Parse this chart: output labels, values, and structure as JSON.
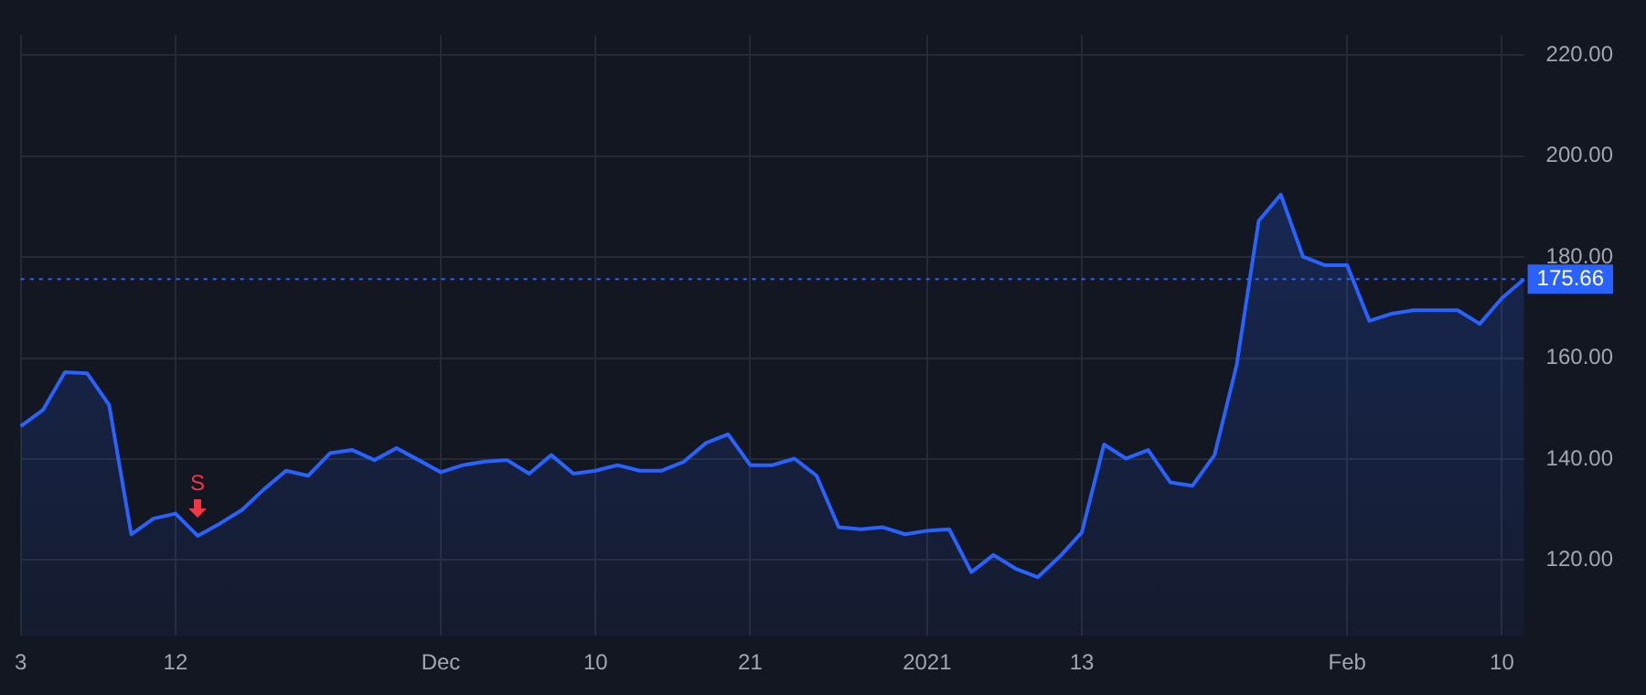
{
  "chart_data": {
    "type": "area",
    "categories": [
      "3",
      null,
      null,
      null,
      null,
      null,
      null,
      "12",
      null,
      null,
      null,
      null,
      null,
      null,
      null,
      null,
      null,
      null,
      null,
      "Dec",
      null,
      null,
      null,
      null,
      null,
      null,
      "10",
      null,
      null,
      null,
      null,
      null,
      null,
      "21",
      null,
      null,
      null,
      null,
      null,
      null,
      null,
      "2021",
      null,
      null,
      null,
      null,
      null,
      null,
      "13",
      null,
      null,
      null,
      null,
      null,
      null,
      null,
      null,
      null,
      null,
      null,
      "Feb",
      null,
      null,
      null,
      null,
      null,
      null,
      "10",
      null
    ],
    "series": [
      {
        "color": "#2962ff",
        "values": [
          146.5,
          149.7,
          157.2,
          157.0,
          150.7,
          125.1,
          128.2,
          129.2,
          124.8,
          127.2,
          129.9,
          134.0,
          137.7,
          136.7,
          141.2,
          141.8,
          139.8,
          142.2,
          139.8,
          137.4,
          138.8,
          139.5,
          139.8,
          137.1,
          140.8,
          137.1,
          137.7,
          138.8,
          137.7,
          137.7,
          139.5,
          143.2,
          144.9,
          138.8,
          138.8,
          140.1,
          136.7,
          126.5,
          126.1,
          126.5,
          125.1,
          125.8,
          126.1,
          117.6,
          121.0,
          118.3,
          116.6,
          120.7,
          125.5,
          142.9,
          140.1,
          141.8,
          135.4,
          134.7,
          140.8,
          158.6,
          187.2,
          192.4,
          180.1,
          178.4,
          178.4,
          167.4,
          168.8,
          169.5,
          169.5,
          169.5,
          166.8,
          171.9,
          175.66
        ]
      }
    ],
    "ylim": [
      105,
      224
    ],
    "yticks": [
      {
        "value": 120,
        "label": "120.00"
      },
      {
        "value": 140,
        "label": "140.00"
      },
      {
        "value": 160,
        "label": "160.00"
      },
      {
        "value": 180,
        "label": "180.00"
      },
      {
        "value": 200,
        "label": "200.00"
      },
      {
        "value": 220,
        "label": "220.00"
      }
    ],
    "grid": true,
    "legend": false,
    "marker": "none",
    "line_style": "solid",
    "ref_lines": [
      {
        "axis": "y",
        "value": 175.66,
        "label": "175.66",
        "color": "#2962ff",
        "line_style": "dotted"
      }
    ],
    "annotations": [
      {
        "text": "S",
        "y": 124.8
      }
    ]
  }
}
